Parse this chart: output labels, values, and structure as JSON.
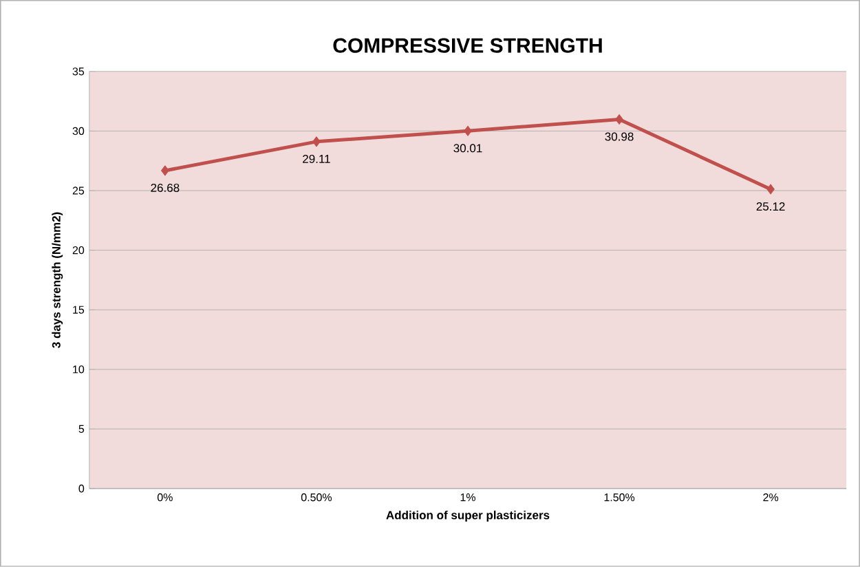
{
  "chart_data": {
    "type": "line",
    "title": "COMPRESSIVE STRENGTH",
    "xlabel": "Addition of super plasticizers",
    "ylabel": "3 days strength (N/mm2)",
    "categories": [
      "0%",
      "0.50%",
      "1%",
      "1.50%",
      "2%"
    ],
    "values": [
      26.68,
      29.11,
      30.01,
      30.98,
      25.12
    ],
    "color": "#c0504d",
    "marker": "diamond",
    "data_labels": true,
    "grid": "y",
    "ylim": [
      0,
      35
    ],
    "yticks": [
      0,
      5,
      10,
      15,
      20,
      25,
      30,
      35
    ]
  }
}
